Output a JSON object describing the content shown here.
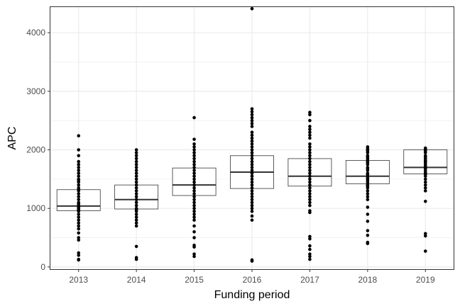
{
  "chart_data": {
    "type": "boxplot",
    "title": "",
    "xlabel": "Funding period",
    "ylabel": "APC",
    "ylim": [
      -50,
      4450
    ],
    "yticks": [
      0,
      1000,
      2000,
      3000,
      4000
    ],
    "categories": [
      "2013",
      "2014",
      "2015",
      "2016",
      "2017",
      "2018",
      "2019"
    ],
    "boxes": [
      {
        "category": "2013",
        "q1": 960,
        "median": 1040,
        "q3": 1320
      },
      {
        "category": "2014",
        "q1": 990,
        "median": 1150,
        "q3": 1400
      },
      {
        "category": "2015",
        "q1": 1220,
        "median": 1400,
        "q3": 1690
      },
      {
        "category": "2016",
        "q1": 1340,
        "median": 1620,
        "q3": 1900
      },
      {
        "category": "2017",
        "q1": 1380,
        "median": 1550,
        "q3": 1850
      },
      {
        "category": "2018",
        "q1": 1420,
        "median": 1550,
        "q3": 1820
      },
      {
        "category": "2019",
        "q1": 1590,
        "median": 1700,
        "q3": 2000
      }
    ],
    "points": {
      "2013": [
        2240,
        2000,
        1900,
        1800,
        1750,
        1700,
        1650,
        1600,
        1550,
        1500,
        1480,
        1450,
        1400,
        1350,
        1320,
        1300,
        1250,
        1200,
        1150,
        1100,
        1080,
        1050,
        1040,
        1030,
        1020,
        1000,
        990,
        980,
        970,
        960,
        950,
        900,
        850,
        800,
        750,
        700,
        650,
        580,
        500,
        460,
        240,
        200,
        130,
        120
      ],
      "2014": [
        2000,
        1950,
        1900,
        1850,
        1800,
        1750,
        1700,
        1650,
        1600,
        1550,
        1500,
        1450,
        1400,
        1350,
        1300,
        1250,
        1200,
        1150,
        1100,
        1050,
        1000,
        980,
        950,
        900,
        850,
        800,
        750,
        700,
        350,
        160,
        130
      ],
      "2015": [
        2550,
        2180,
        2100,
        2050,
        2000,
        1950,
        1900,
        1850,
        1800,
        1750,
        1700,
        1650,
        1600,
        1550,
        1500,
        1450,
        1400,
        1350,
        1300,
        1250,
        1200,
        1150,
        1100,
        1050,
        1000,
        950,
        900,
        850,
        800,
        700,
        600,
        500,
        370,
        340,
        220,
        180
      ],
      "2016": [
        4410,
        2700,
        2650,
        2600,
        2550,
        2500,
        2450,
        2400,
        2300,
        2250,
        2200,
        2150,
        2100,
        2050,
        2000,
        1950,
        1900,
        1850,
        1800,
        1750,
        1700,
        1650,
        1600,
        1550,
        1500,
        1450,
        1400,
        1350,
        1300,
        1250,
        1200,
        1150,
        1100,
        1050,
        1000,
        950,
        870,
        800,
        120,
        100
      ],
      "2017": [
        2640,
        2600,
        2500,
        2400,
        2350,
        2300,
        2250,
        2200,
        2100,
        2050,
        2000,
        1950,
        1900,
        1850,
        1800,
        1750,
        1700,
        1650,
        1600,
        1550,
        1500,
        1450,
        1400,
        1350,
        1300,
        1250,
        1200,
        1150,
        1100,
        1050,
        960,
        930,
        520,
        480,
        360,
        300,
        220,
        180,
        130
      ],
      "2018": [
        2050,
        2020,
        2000,
        1980,
        1950,
        1900,
        1880,
        1850,
        1820,
        1800,
        1780,
        1750,
        1700,
        1680,
        1650,
        1600,
        1580,
        1550,
        1520,
        1500,
        1480,
        1450,
        1420,
        1400,
        1380,
        1350,
        1300,
        1250,
        1200,
        1150,
        1020,
        900,
        780,
        620,
        540,
        420,
        400
      ],
      "2019": [
        2030,
        2010,
        2000,
        1980,
        1950,
        1900,
        1880,
        1850,
        1820,
        1800,
        1780,
        1750,
        1720,
        1700,
        1680,
        1650,
        1620,
        1600,
        1580,
        1550,
        1500,
        1450,
        1400,
        1350,
        1300,
        1120,
        570,
        530,
        270
      ]
    }
  }
}
